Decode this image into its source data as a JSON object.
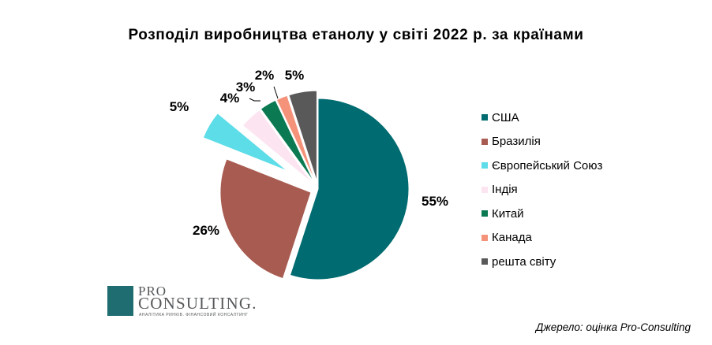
{
  "chart_data": {
    "type": "pie",
    "title": "Розподіл виробництва етанолу у світі 2022 р. за країнами",
    "slices": [
      {
        "name": "США",
        "value": 55,
        "label": "55%",
        "color": "#006b70"
      },
      {
        "name": "Бразилія",
        "value": 26,
        "label": "26%",
        "color": "#a85b50"
      },
      {
        "name": "Європейський Союз",
        "value": 5,
        "label": "5%",
        "color": "#5ddde8"
      },
      {
        "name": "Індія",
        "value": 4,
        "label": "4%",
        "color": "#fce4f0"
      },
      {
        "name": "Китай",
        "value": 3,
        "label": "3%",
        "color": "#0b7a52"
      },
      {
        "name": "Канада",
        "value": 2,
        "label": "2%",
        "color": "#f4937a"
      },
      {
        "name": "решта світу",
        "value": 5,
        "label": "5%",
        "color": "#595959"
      }
    ],
    "legend_position": "right"
  },
  "logo": {
    "line1": "PRO",
    "line2": "CONSULTING.",
    "tagline": "АНАЛІТИКА РИНКІВ. ФІНАНСОВИЙ КОНСАЛТИНГ"
  },
  "source": "Джерело: оцінка Pro-Consulting"
}
